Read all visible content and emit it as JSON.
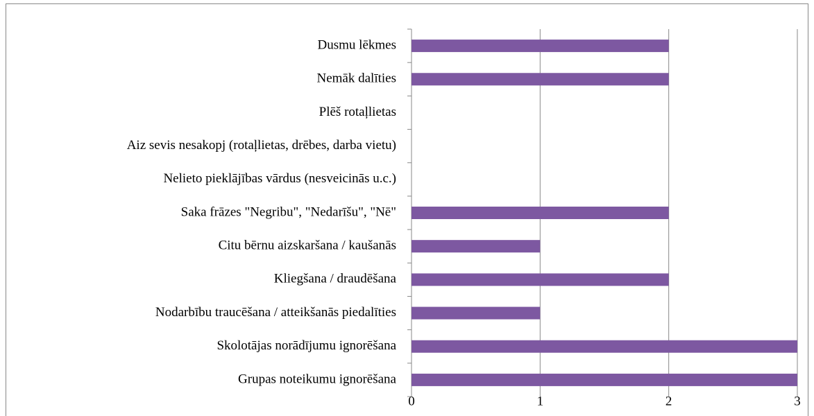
{
  "chart_data": {
    "type": "bar",
    "orientation": "horizontal",
    "categories": [
      "Dusmu lēkmes",
      "Nemāk dalīties",
      "Plēš rotaļlietas",
      "Aiz sevis nesakopj (rotaļlietas, drēbes, darba vietu)",
      "Nelieto pieklājības vārdus (nesveicinās u.c.)",
      "Saka frāzes \"Negribu\", \"Nedarīšu\", \"Nē\"",
      "Citu bērnu aizskaršana / kaušanās",
      "Kliegšana / draudēšana",
      "Nodarbību traucēšana / atteikšanās piedalīties",
      "Skolotājas norādījumu ignorēšana",
      "Grupas noteikumu ignorēšana"
    ],
    "values": [
      2,
      2,
      0,
      0,
      0,
      2,
      1,
      2,
      1,
      3,
      3
    ],
    "color": "#7d58a1",
    "xlim": [
      0,
      3
    ],
    "xticks": [
      0,
      1,
      2,
      3
    ],
    "grid": true
  }
}
